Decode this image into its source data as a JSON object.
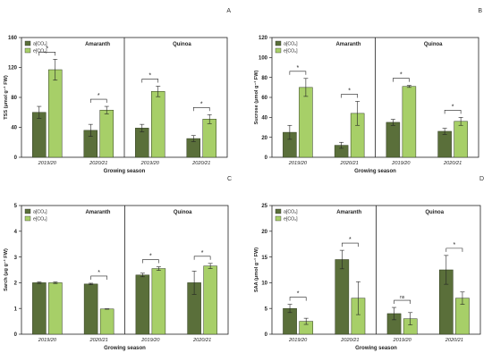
{
  "colors": {
    "ambient": "#5a6f3a",
    "elevated": "#a7cf68",
    "axis": "#222222"
  },
  "chart_data": [
    {
      "type": "bar",
      "panel_label": "A",
      "ylabel": "TSS (μmol g⁻¹ FW)",
      "xlabel": "Growing season",
      "yticks": [
        "0",
        "40",
        "80",
        "120",
        "160"
      ],
      "ylim": [
        0,
        160
      ],
      "legend": [
        "a[CO₂]",
        "e[CO₂]"
      ],
      "groups": [
        {
          "name": "Amaranth",
          "categories": [
            "2019/20",
            "2020/21"
          ]
        },
        {
          "name": "Quinoa",
          "categories": [
            "2019/20",
            "2020/21"
          ]
        }
      ],
      "series": [
        {
          "name": "a[CO₂]",
          "values": [
            60,
            36,
            39,
            25
          ],
          "errors": [
            8,
            8,
            5,
            4
          ]
        },
        {
          "name": "e[CO₂]",
          "values": [
            117,
            63,
            88,
            51
          ],
          "errors": [
            14,
            5,
            7,
            6
          ]
        }
      ],
      "significance": [
        "*",
        "*",
        "*",
        "*"
      ]
    },
    {
      "type": "bar",
      "panel_label": "B",
      "ylabel": "Sucrose (μmol g⁻¹ FW)",
      "xlabel": "Growing season",
      "yticks": [
        "0",
        "20",
        "40",
        "60",
        "80",
        "100",
        "120"
      ],
      "ylim": [
        0,
        120
      ],
      "legend": [
        "a[CO₂]",
        "e[CO₂]"
      ],
      "groups": [
        {
          "name": "Amaranth",
          "categories": [
            "2019/20",
            "2020/21"
          ]
        },
        {
          "name": "Quinoa",
          "categories": [
            "2019/20",
            "2020/21"
          ]
        }
      ],
      "series": [
        {
          "name": "a[CO₂]",
          "values": [
            25,
            12,
            35,
            26
          ],
          "errors": [
            7,
            3,
            3,
            3
          ]
        },
        {
          "name": "e[CO₂]",
          "values": [
            70,
            44,
            71,
            36
          ],
          "errors": [
            9,
            12,
            1,
            4
          ]
        }
      ],
      "significance": [
        "*",
        "*",
        "*",
        "*"
      ]
    },
    {
      "type": "bar",
      "panel_label": "C",
      "ylabel": "Sarch (μg g⁻¹ FW)",
      "xlabel": "Growing season",
      "yticks": [
        "0",
        "1",
        "2",
        "3",
        "4",
        "5"
      ],
      "ylim": [
        0,
        5
      ],
      "legend": [
        "a[CO₂]",
        "e[CO₂]"
      ],
      "groups": [
        {
          "name": "Amaranth",
          "categories": [
            "2019/20",
            "2020/21"
          ]
        },
        {
          "name": "Quinoa",
          "categories": [
            "2019/20",
            "2020/21"
          ]
        }
      ],
      "series": [
        {
          "name": "a[CO₂]",
          "values": [
            2.0,
            1.95,
            2.3,
            2.0
          ],
          "errors": [
            0.03,
            0.03,
            0.07,
            0.45
          ]
        },
        {
          "name": "e[CO₂]",
          "values": [
            2.0,
            0.98,
            2.55,
            2.65
          ],
          "errors": [
            0.03,
            0.01,
            0.07,
            0.1
          ]
        }
      ],
      "significance": [
        "",
        "*",
        "*",
        "*"
      ]
    },
    {
      "type": "bar",
      "panel_label": "D",
      "ylabel": "SAA (μmol g⁻¹ FW)",
      "xlabel": "Growing season",
      "yticks": [
        "0",
        "5",
        "10",
        "15",
        "20",
        "25"
      ],
      "ylim": [
        0,
        25
      ],
      "legend": [
        "a[CO₂]",
        "e[CO₂]"
      ],
      "groups": [
        {
          "name": "Amaranth",
          "categories": [
            "2019/20",
            "2020/21"
          ]
        },
        {
          "name": "Quinoa",
          "categories": [
            "2019/20",
            "2020/21"
          ]
        }
      ],
      "series": [
        {
          "name": "a[CO₂]",
          "values": [
            5.0,
            14.5,
            4.0,
            12.5
          ],
          "errors": [
            0.8,
            1.8,
            1.2,
            2.8
          ]
        },
        {
          "name": "e[CO₂]",
          "values": [
            2.5,
            7.0,
            3.0,
            7.0
          ],
          "errors": [
            0.6,
            3.2,
            1.2,
            1.2
          ]
        }
      ],
      "significance": [
        "*",
        "*",
        "ns",
        "*"
      ]
    }
  ]
}
